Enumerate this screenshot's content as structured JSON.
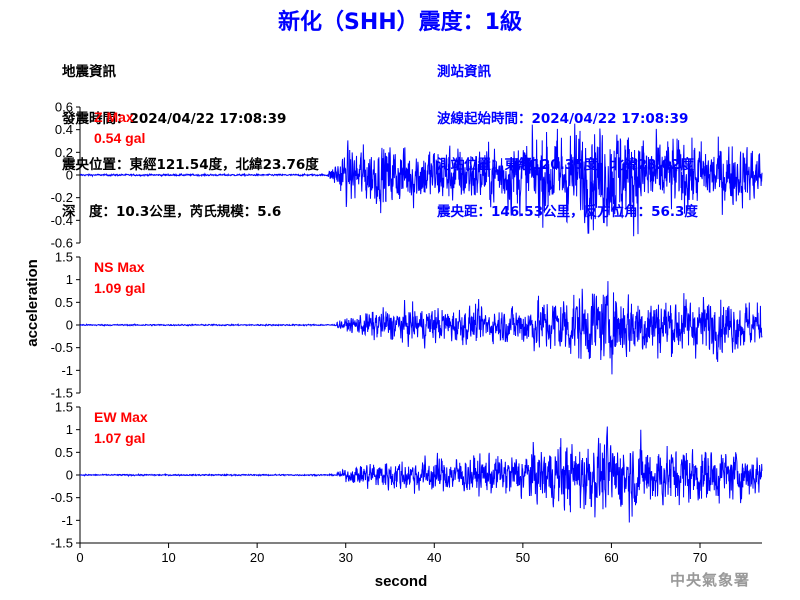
{
  "header": {
    "title": "新化（SHH）震度：1級"
  },
  "earthquake_info": {
    "heading": "地震資訊",
    "time": "發震時間：2024/04/22 17:08:39",
    "location": "震央位置：東經121.54度，北緯23.76度",
    "depth": "深　度：10.3公里，芮氏規模：5.6"
  },
  "station_info": {
    "heading": "測站資訊",
    "wave_start": "波線起始時間：2024/04/22 17:08:39",
    "location": "測站位置：東經120.35度，北緯23.02度",
    "distance": "震央距：146.53公里，反方位角：56.3度"
  },
  "footer": {
    "agency": "中央氣象署"
  },
  "colors": {
    "title": "#0000ff",
    "trace": "#0000ff",
    "max_label": "#ff0000",
    "station_text": "#0000ff"
  },
  "chart_data": [
    {
      "type": "line",
      "panel": "Z",
      "max_label": "Z Max",
      "max_value": "0.54 gal",
      "ylim": [
        -0.6,
        0.6
      ],
      "yticks": [
        "0.6",
        "0.4",
        "0.2",
        "0",
        "-0.2",
        "-0.4",
        "-0.6"
      ],
      "ytick_values": [
        0.6,
        0.4,
        0.2,
        0,
        -0.2,
        -0.4,
        -0.6
      ],
      "x_range": [
        0,
        77
      ],
      "noise_level": 0.01,
      "onset": 28,
      "envelope": [
        [
          28,
          0.02
        ],
        [
          30,
          0.18
        ],
        [
          35,
          0.2
        ],
        [
          45,
          0.18
        ],
        [
          55,
          0.3
        ],
        [
          60,
          0.35
        ],
        [
          65,
          0.25
        ],
        [
          70,
          0.22
        ],
        [
          77,
          0.18
        ]
      ],
      "peak": 0.54
    },
    {
      "type": "line",
      "panel": "NS",
      "max_label": "NS Max",
      "max_value": "1.09 gal",
      "ylim": [
        -1.5,
        1.5
      ],
      "yticks": [
        "1.5",
        "1",
        "0.5",
        "0",
        "-0.5",
        "-1",
        "-1.5"
      ],
      "ytick_values": [
        1.5,
        1,
        0.5,
        0,
        -0.5,
        -1,
        -1.5
      ],
      "x_range": [
        0,
        77
      ],
      "noise_level": 0.02,
      "onset": 29,
      "envelope": [
        [
          29,
          0.05
        ],
        [
          33,
          0.25
        ],
        [
          40,
          0.3
        ],
        [
          48,
          0.28
        ],
        [
          55,
          0.55
        ],
        [
          60,
          0.6
        ],
        [
          65,
          0.5
        ],
        [
          72,
          0.45
        ],
        [
          77,
          0.35
        ]
      ],
      "peak": 1.09
    },
    {
      "type": "line",
      "panel": "EW",
      "max_label": "EW Max",
      "max_value": "1.07 gal",
      "ylim": [
        -1.5,
        1.5
      ],
      "yticks": [
        "1.5",
        "1",
        "0.5",
        "0",
        "-0.5",
        "-1",
        "-1.5"
      ],
      "ytick_values": [
        1.5,
        1,
        0.5,
        0,
        -0.5,
        -1,
        -1.5
      ],
      "x_range": [
        0,
        77
      ],
      "noise_level": 0.02,
      "onset": 29,
      "envelope": [
        [
          29,
          0.05
        ],
        [
          33,
          0.25
        ],
        [
          40,
          0.3
        ],
        [
          48,
          0.35
        ],
        [
          55,
          0.6
        ],
        [
          60,
          0.65
        ],
        [
          65,
          0.55
        ],
        [
          72,
          0.45
        ],
        [
          77,
          0.35
        ]
      ],
      "peak": 1.07
    }
  ],
  "axes": {
    "xlabel": "second",
    "ylabel": "acceleration",
    "xticks": [
      "0",
      "10",
      "20",
      "30",
      "40",
      "50",
      "60",
      "70"
    ],
    "xtick_values": [
      0,
      10,
      20,
      30,
      40,
      50,
      60,
      70
    ]
  }
}
